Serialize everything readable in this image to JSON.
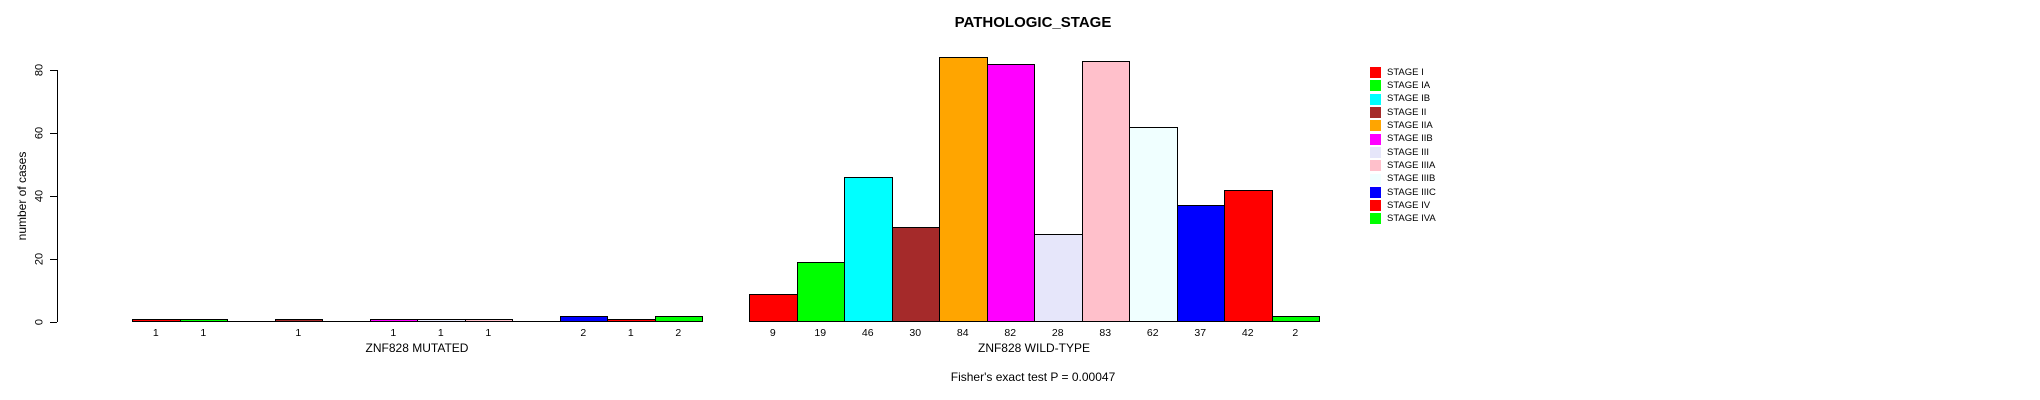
{
  "chart_data": {
    "type": "bar",
    "title": "PATHOLOGIC_STAGE",
    "ylabel": "number of cases",
    "ylim": [
      0,
      80
    ],
    "yticks": [
      0,
      20,
      40,
      60,
      80
    ],
    "grid": false,
    "legend_position": "right",
    "categories": [
      "STAGE I",
      "STAGE IA",
      "STAGE IB",
      "STAGE II",
      "STAGE IIA",
      "STAGE IIB",
      "STAGE III",
      "STAGE IIIA",
      "STAGE IIIB",
      "STAGE IIIC",
      "STAGE IV",
      "STAGE IVA"
    ],
    "colors": [
      "#FF0000",
      "#00FF00",
      "#00FFFF",
      "#A52A2A",
      "#FFA500",
      "#FF00FF",
      "#E6E6FA",
      "#FFC0CB",
      "#F0FFFF",
      "#0000FF",
      "#FF0000",
      "#00FF00"
    ],
    "series": [
      {
        "name": "ZNF828 MUTATED",
        "values": [
          1,
          1,
          0,
          1,
          0,
          1,
          1,
          1,
          0,
          2,
          1,
          2
        ]
      },
      {
        "name": "ZNF828 WILD-TYPE",
        "values": [
          9,
          19,
          46,
          30,
          84,
          82,
          28,
          83,
          62,
          37,
          42,
          2
        ]
      }
    ],
    "annotation": "Fisher's exact test P = 0.00047"
  }
}
